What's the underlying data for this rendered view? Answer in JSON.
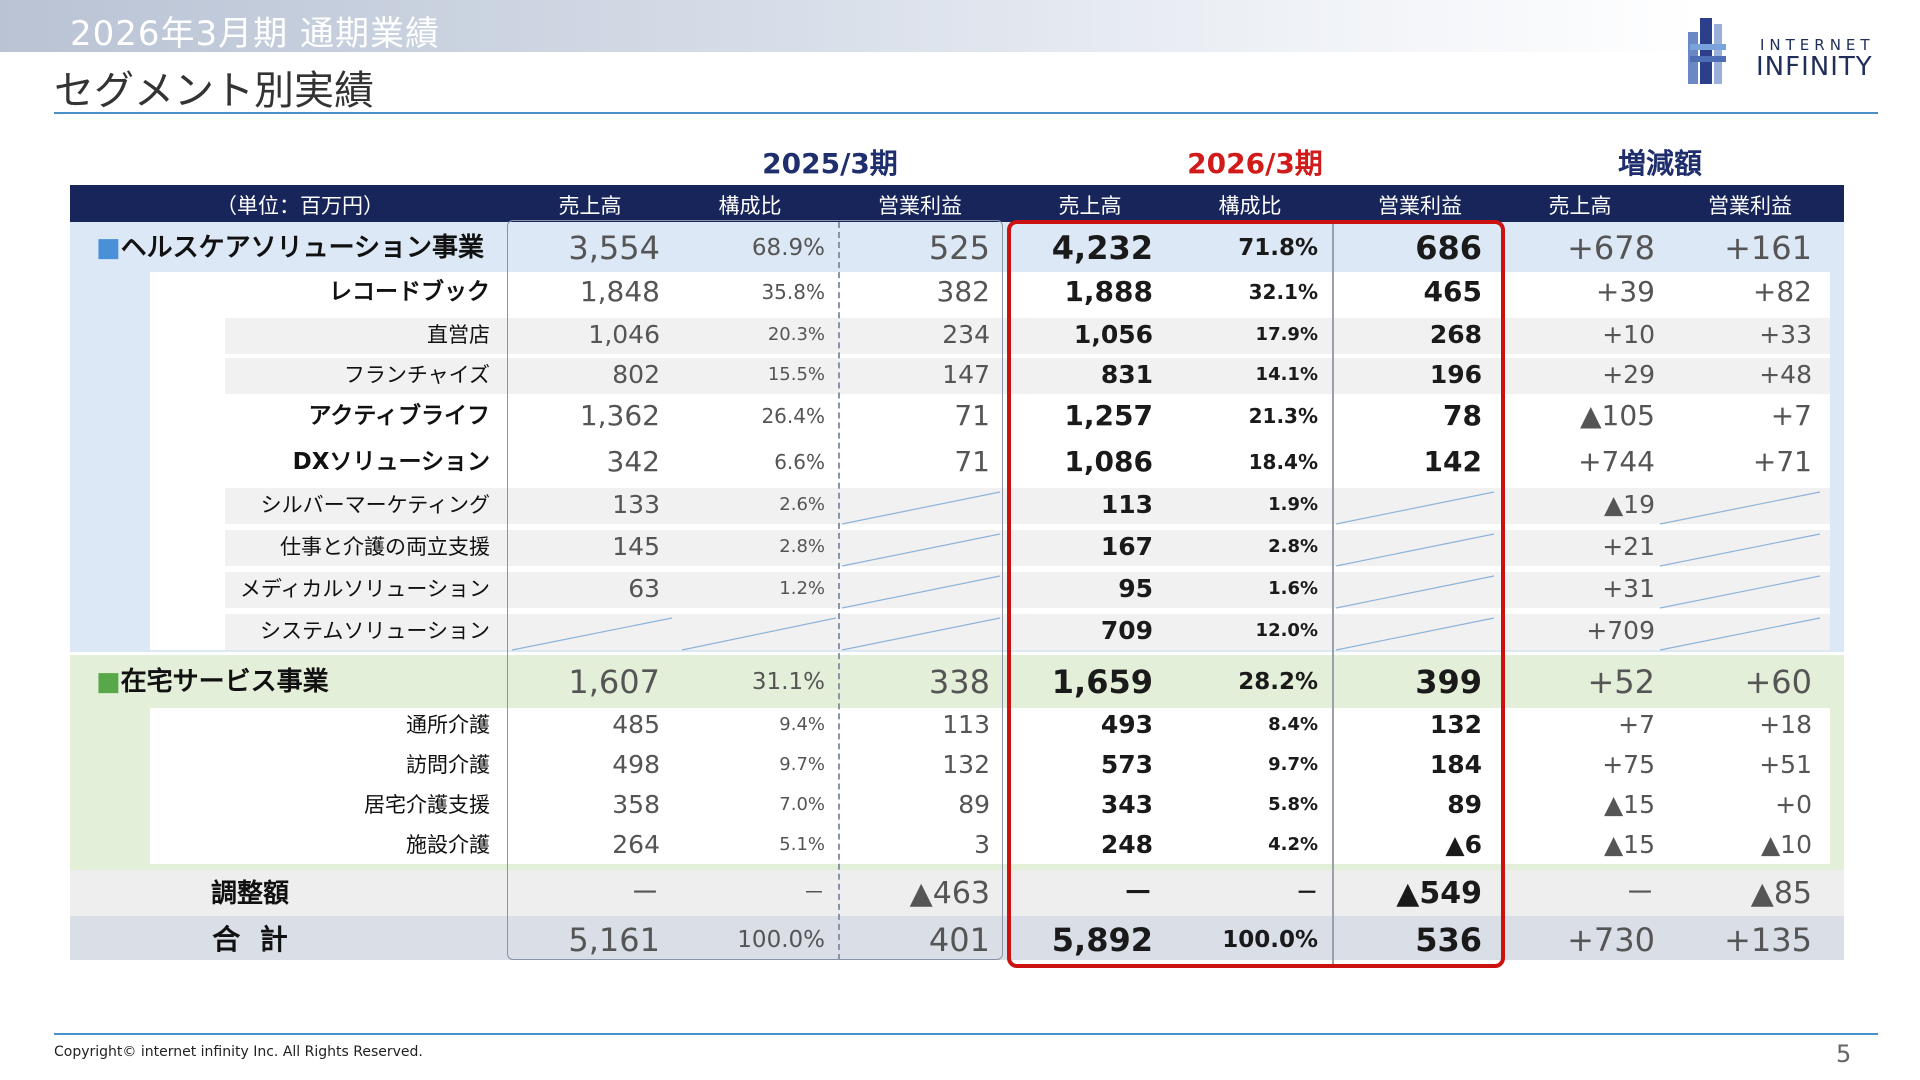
{
  "header": {
    "period": "2026年3月期  通期業績",
    "title": "セグメント別実績",
    "logo_top": "INTERNET",
    "logo_bottom": "INFINITY"
  },
  "column_groups": {
    "prev": "2025/3期",
    "curr": "2026/3期",
    "diff": "増減額"
  },
  "columns": {
    "unit": "（単位：百万円）",
    "prev_sales": "売上高",
    "prev_ratio": "構成比",
    "prev_op": "営業利益",
    "curr_sales": "売上高",
    "curr_ratio": "構成比",
    "curr_op": "営業利益",
    "diff_sales": "売上高",
    "diff_op": "営業利益"
  },
  "rows": [
    {
      "label": "■ヘルスケアソリューション事業",
      "p_s": "3,554",
      "p_r": "68.9%",
      "p_o": "525",
      "c_s": "4,232",
      "c_r": "71.8%",
      "c_o": "686",
      "d_s": "+678",
      "d_o": "+161"
    },
    {
      "label": "レコードブック",
      "p_s": "1,848",
      "p_r": "35.8%",
      "p_o": "382",
      "c_s": "1,888",
      "c_r": "32.1%",
      "c_o": "465",
      "d_s": "+39",
      "d_o": "+82"
    },
    {
      "label": "直営店",
      "p_s": "1,046",
      "p_r": "20.3%",
      "p_o": "234",
      "c_s": "1,056",
      "c_r": "17.9%",
      "c_o": "268",
      "d_s": "+10",
      "d_o": "+33"
    },
    {
      "label": "フランチャイズ",
      "p_s": "802",
      "p_r": "15.5%",
      "p_o": "147",
      "c_s": "831",
      "c_r": "14.1%",
      "c_o": "196",
      "d_s": "+29",
      "d_o": "+48"
    },
    {
      "label": "アクティブライフ",
      "p_s": "1,362",
      "p_r": "26.4%",
      "p_o": "71",
      "c_s": "1,257",
      "c_r": "21.3%",
      "c_o": "78",
      "d_s": "▲105",
      "d_o": "+7"
    },
    {
      "label": "DXソリューション",
      "p_s": "342",
      "p_r": "6.6%",
      "p_o": "71",
      "c_s": "1,086",
      "c_r": "18.4%",
      "c_o": "142",
      "d_s": "+744",
      "d_o": "+71"
    },
    {
      "label": "シルバーマーケティング",
      "p_s": "133",
      "p_r": "2.6%",
      "p_o": "",
      "c_s": "113",
      "c_r": "1.9%",
      "c_o": "",
      "d_s": "▲19",
      "d_o": ""
    },
    {
      "label": "仕事と介護の両立支援",
      "p_s": "145",
      "p_r": "2.8%",
      "p_o": "",
      "c_s": "167",
      "c_r": "2.8%",
      "c_o": "",
      "d_s": "+21",
      "d_o": ""
    },
    {
      "label": "メディカルソリューション",
      "p_s": "63",
      "p_r": "1.2%",
      "p_o": "",
      "c_s": "95",
      "c_r": "1.6%",
      "c_o": "",
      "d_s": "+31",
      "d_o": ""
    },
    {
      "label": "システムソリューション",
      "p_s": "",
      "p_r": "",
      "p_o": "",
      "c_s": "709",
      "c_r": "12.0%",
      "c_o": "",
      "d_s": "+709",
      "d_o": ""
    },
    {
      "label": "■在宅サービス事業",
      "p_s": "1,607",
      "p_r": "31.1%",
      "p_o": "338",
      "c_s": "1,659",
      "c_r": "28.2%",
      "c_o": "399",
      "d_s": "+52",
      "d_o": "+60"
    },
    {
      "label": "通所介護",
      "p_s": "485",
      "p_r": "9.4%",
      "p_o": "113",
      "c_s": "493",
      "c_r": "8.4%",
      "c_o": "132",
      "d_s": "+7",
      "d_o": "+18"
    },
    {
      "label": "訪問介護",
      "p_s": "498",
      "p_r": "9.7%",
      "p_o": "132",
      "c_s": "573",
      "c_r": "9.7%",
      "c_o": "184",
      "d_s": "+75",
      "d_o": "+51"
    },
    {
      "label": "居宅介護支援",
      "p_s": "358",
      "p_r": "7.0%",
      "p_o": "89",
      "c_s": "343",
      "c_r": "5.8%",
      "c_o": "89",
      "d_s": "▲15",
      "d_o": "+0"
    },
    {
      "label": "施設介護",
      "p_s": "264",
      "p_r": "5.1%",
      "p_o": "3",
      "c_s": "248",
      "c_r": "4.2%",
      "c_o": "▲6",
      "d_s": "▲15",
      "d_o": "▲10"
    },
    {
      "label": "調整額",
      "p_s": "－",
      "p_r": "－",
      "p_o": "▲463",
      "c_s": "－",
      "c_r": "－",
      "c_o": "▲549",
      "d_s": "－",
      "d_o": "▲85"
    },
    {
      "label": "合  計",
      "p_s": "5,161",
      "p_r": "100.0%",
      "p_o": "401",
      "c_s": "5,892",
      "c_r": "100.0%",
      "c_o": "536",
      "d_s": "+730",
      "d_o": "+135"
    }
  ],
  "footer": {
    "copyright": "Copyright© internet infinity Inc. All Rights Reserved.",
    "page": "5"
  },
  "colors": {
    "navy": "#17255a",
    "accent_red": "#cc1111",
    "healthcare_bg": "#dce8f5",
    "homecare_bg": "#e3efd8",
    "total_bg": "#d9dee7",
    "adjust_bg": "#eeeeee",
    "healthcare_marker": "#4a90d9",
    "homecare_marker": "#58a84a"
  }
}
